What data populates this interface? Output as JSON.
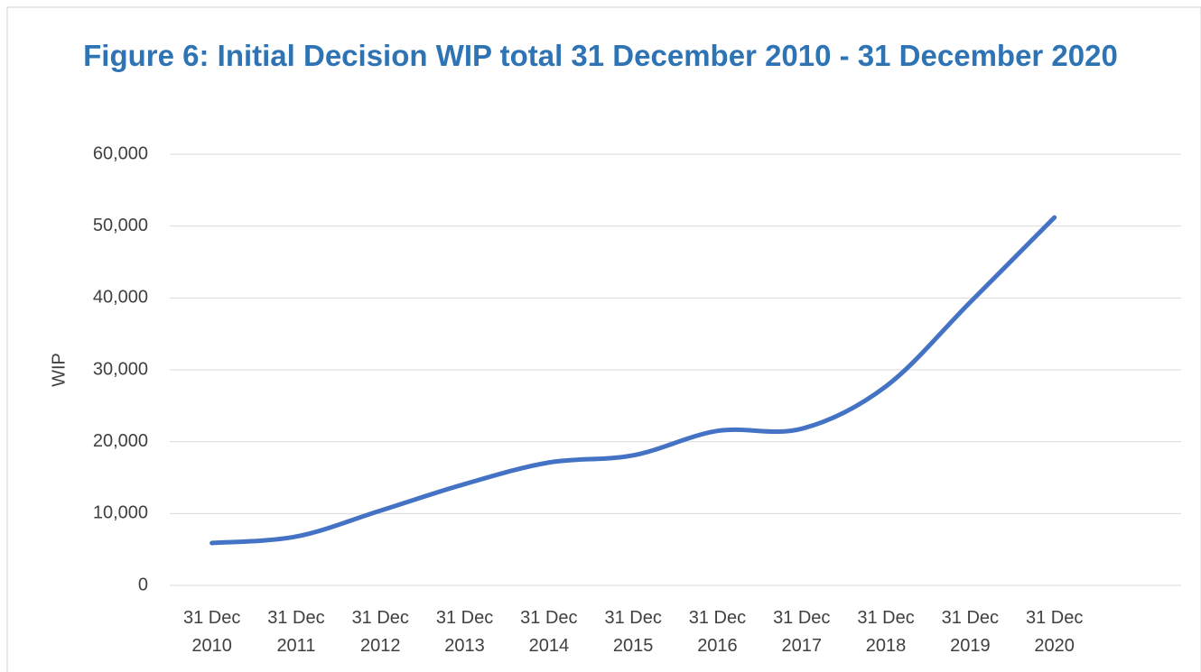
{
  "chart_data": {
    "type": "line",
    "title": "Figure 6: Initial Decision WIP total 31 December 2010 - 31 December 2020",
    "y_label": "WIP",
    "categories": [
      "31 Dec 2010",
      "31 Dec 2011",
      "31 Dec 2012",
      "31 Dec 2013",
      "31 Dec 2014",
      "31 Dec 2015",
      "31 Dec 2016",
      "31 Dec 2017",
      "31 Dec 2018",
      "31 Dec 2019",
      "31 Dec 2020"
    ],
    "series": [
      {
        "name": "WIP",
        "color": "#4472c4",
        "values": [
          5900,
          6800,
          10400,
          14100,
          17100,
          18100,
          21500,
          21800,
          27700,
          39400,
          51200
        ]
      }
    ],
    "ylim": [
      0,
      60000
    ],
    "yticks": [
      0,
      {
        "value": 10000,
        "label": "10,000"
      },
      {
        "value": 20000,
        "label": "20,000"
      },
      {
        "value": 30000,
        "label": "30,000"
      },
      {
        "value": 40000,
        "label": "40,000"
      },
      {
        "value": 50000,
        "label": "50,000"
      },
      {
        "value": 60000,
        "label": "60,000"
      }
    ],
    "grid": true
  }
}
